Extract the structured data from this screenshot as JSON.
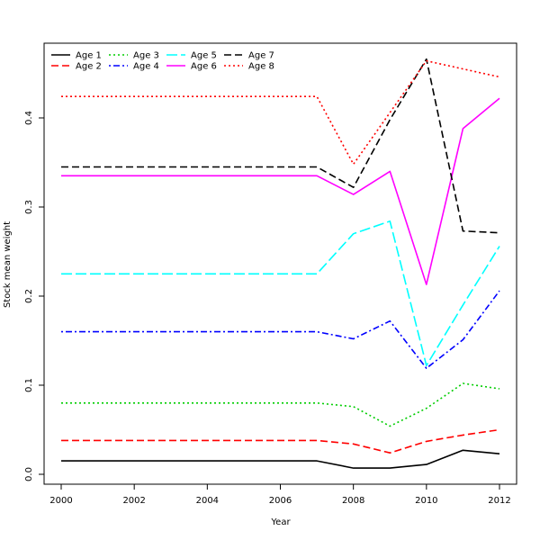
{
  "chart_data": {
    "type": "line",
    "title": "",
    "xlabel": "Year",
    "ylabel": "Stock mean weight",
    "xlim": [
      2000,
      2012
    ],
    "ylim": [
      0,
      0.48
    ],
    "x": [
      2000,
      2001,
      2002,
      2003,
      2004,
      2005,
      2006,
      2007,
      2008,
      2009,
      2010,
      2011,
      2012
    ],
    "x_ticks": [
      "2000",
      "2002",
      "2004",
      "2006",
      "2008",
      "2010",
      "2012"
    ],
    "y_ticks": [
      "0.0",
      "0.1",
      "0.2",
      "0.3",
      "0.4"
    ],
    "grid": false,
    "legend_position": "top-left",
    "series": [
      {
        "name": "Age 1",
        "color": "#000000",
        "dash": "solid",
        "values": [
          0.015,
          0.015,
          0.015,
          0.015,
          0.015,
          0.015,
          0.015,
          0.015,
          0.007,
          0.007,
          0.011,
          0.027,
          0.023
        ]
      },
      {
        "name": "Age 2",
        "color": "#ff0000",
        "dash": "dashed",
        "values": [
          0.038,
          0.038,
          0.038,
          0.038,
          0.038,
          0.038,
          0.038,
          0.038,
          0.034,
          0.024,
          0.037,
          0.044,
          0.05
        ]
      },
      {
        "name": "Age 3",
        "color": "#00cd00",
        "dash": "dotted",
        "values": [
          0.08,
          0.08,
          0.08,
          0.08,
          0.08,
          0.08,
          0.08,
          0.08,
          0.076,
          0.054,
          0.074,
          0.102,
          0.096
        ]
      },
      {
        "name": "Age 4",
        "color": "#0000ff",
        "dash": "dotdash",
        "values": [
          0.16,
          0.16,
          0.16,
          0.16,
          0.16,
          0.16,
          0.16,
          0.16,
          0.152,
          0.172,
          0.119,
          0.151,
          0.206
        ]
      },
      {
        "name": "Age 5",
        "color": "#00ffff",
        "dash": "longdash",
        "values": [
          0.225,
          0.225,
          0.225,
          0.225,
          0.225,
          0.225,
          0.225,
          0.225,
          0.27,
          0.284,
          0.122,
          0.19,
          0.256
        ]
      },
      {
        "name": "Age 6",
        "color": "#ff00ff",
        "dash": "solid",
        "values": [
          0.335,
          0.335,
          0.335,
          0.335,
          0.335,
          0.335,
          0.335,
          0.335,
          0.314,
          0.34,
          0.213,
          0.388,
          0.422
        ]
      },
      {
        "name": "Age 7",
        "color": "#000000",
        "dash": "dashed",
        "values": [
          0.345,
          0.345,
          0.345,
          0.345,
          0.345,
          0.345,
          0.345,
          0.345,
          0.322,
          0.398,
          0.466,
          0.273,
          0.271
        ]
      },
      {
        "name": "Age 8",
        "color": "#ff0000",
        "dash": "dotted",
        "values": [
          0.424,
          0.424,
          0.424,
          0.424,
          0.424,
          0.424,
          0.424,
          0.424,
          0.348,
          0.406,
          0.464,
          0.455,
          0.446
        ]
      }
    ]
  }
}
